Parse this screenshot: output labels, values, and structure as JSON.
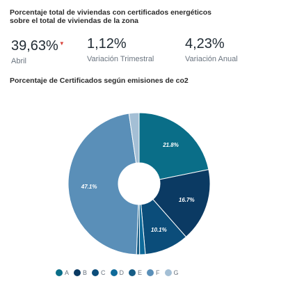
{
  "header": {
    "title": "Porcentaje total de viviendas con certificados energéticos sobre el total de viviendas de la zona"
  },
  "kpis": [
    {
      "value": "39,63%",
      "label": "Abril"
    },
    {
      "value": "1,12%",
      "label": "Variación Trimestral"
    },
    {
      "value": "4,23%",
      "label": "Variación Anual"
    }
  ],
  "colors": {
    "trend_down": "#d9463e",
    "segments": [
      "#0a6e88",
      "#0b3a63",
      "#0b4d7a",
      "#0e6a9a",
      "#165c85",
      "#5a8fb8",
      "#a4bfd5"
    ]
  },
  "chart_data": {
    "type": "pie",
    "donut": true,
    "title": "Porcentaje de Certificados según emisiones de co2",
    "categories": [
      "A",
      "B",
      "C",
      "D",
      "E",
      "F",
      "G"
    ],
    "values": [
      21.8,
      16.7,
      10.1,
      1.3,
      0.7,
      47.1,
      2.3
    ],
    "labels": [
      "21.8%",
      "16.7%",
      "10.1%",
      "",
      "",
      "47.1%",
      ""
    ],
    "legend_position": "bottom"
  }
}
